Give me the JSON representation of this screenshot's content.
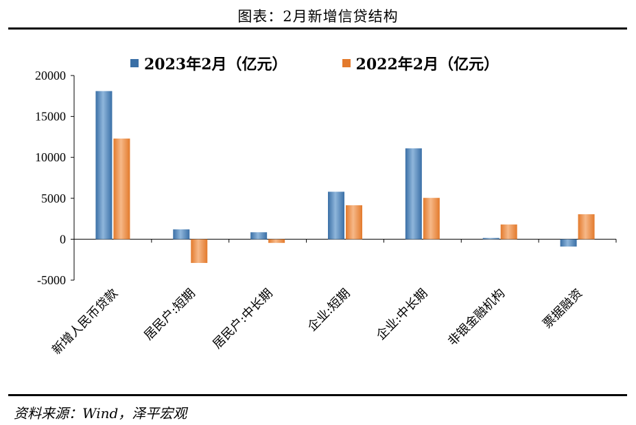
{
  "title": "图表：2月新增信贷结构",
  "source": "资料来源：Wind，泽平宏观",
  "colors": {
    "series1": "#3a6fa6",
    "series2": "#e37a2c"
  },
  "chart_data": {
    "type": "bar",
    "categories": [
      "新增人民币贷款",
      "居民户:短期",
      "居民户:中长期",
      "企业:短期",
      "企业:中长期",
      "非银金融机构",
      "票据融资"
    ],
    "series": [
      {
        "name": "2023年2月（亿元）",
        "values": [
          18100,
          1200,
          850,
          5800,
          11100,
          150,
          -900
        ]
      },
      {
        "name": "2022年2月（亿元）",
        "values": [
          12300,
          -2900,
          -450,
          4150,
          5050,
          1800,
          3050
        ]
      }
    ],
    "yticks": [
      "20000",
      "15000",
      "10000",
      "5000",
      "0",
      "-5000"
    ],
    "ylim": [
      -5000,
      20000
    ],
    "legend_position": "top",
    "grid": false
  }
}
